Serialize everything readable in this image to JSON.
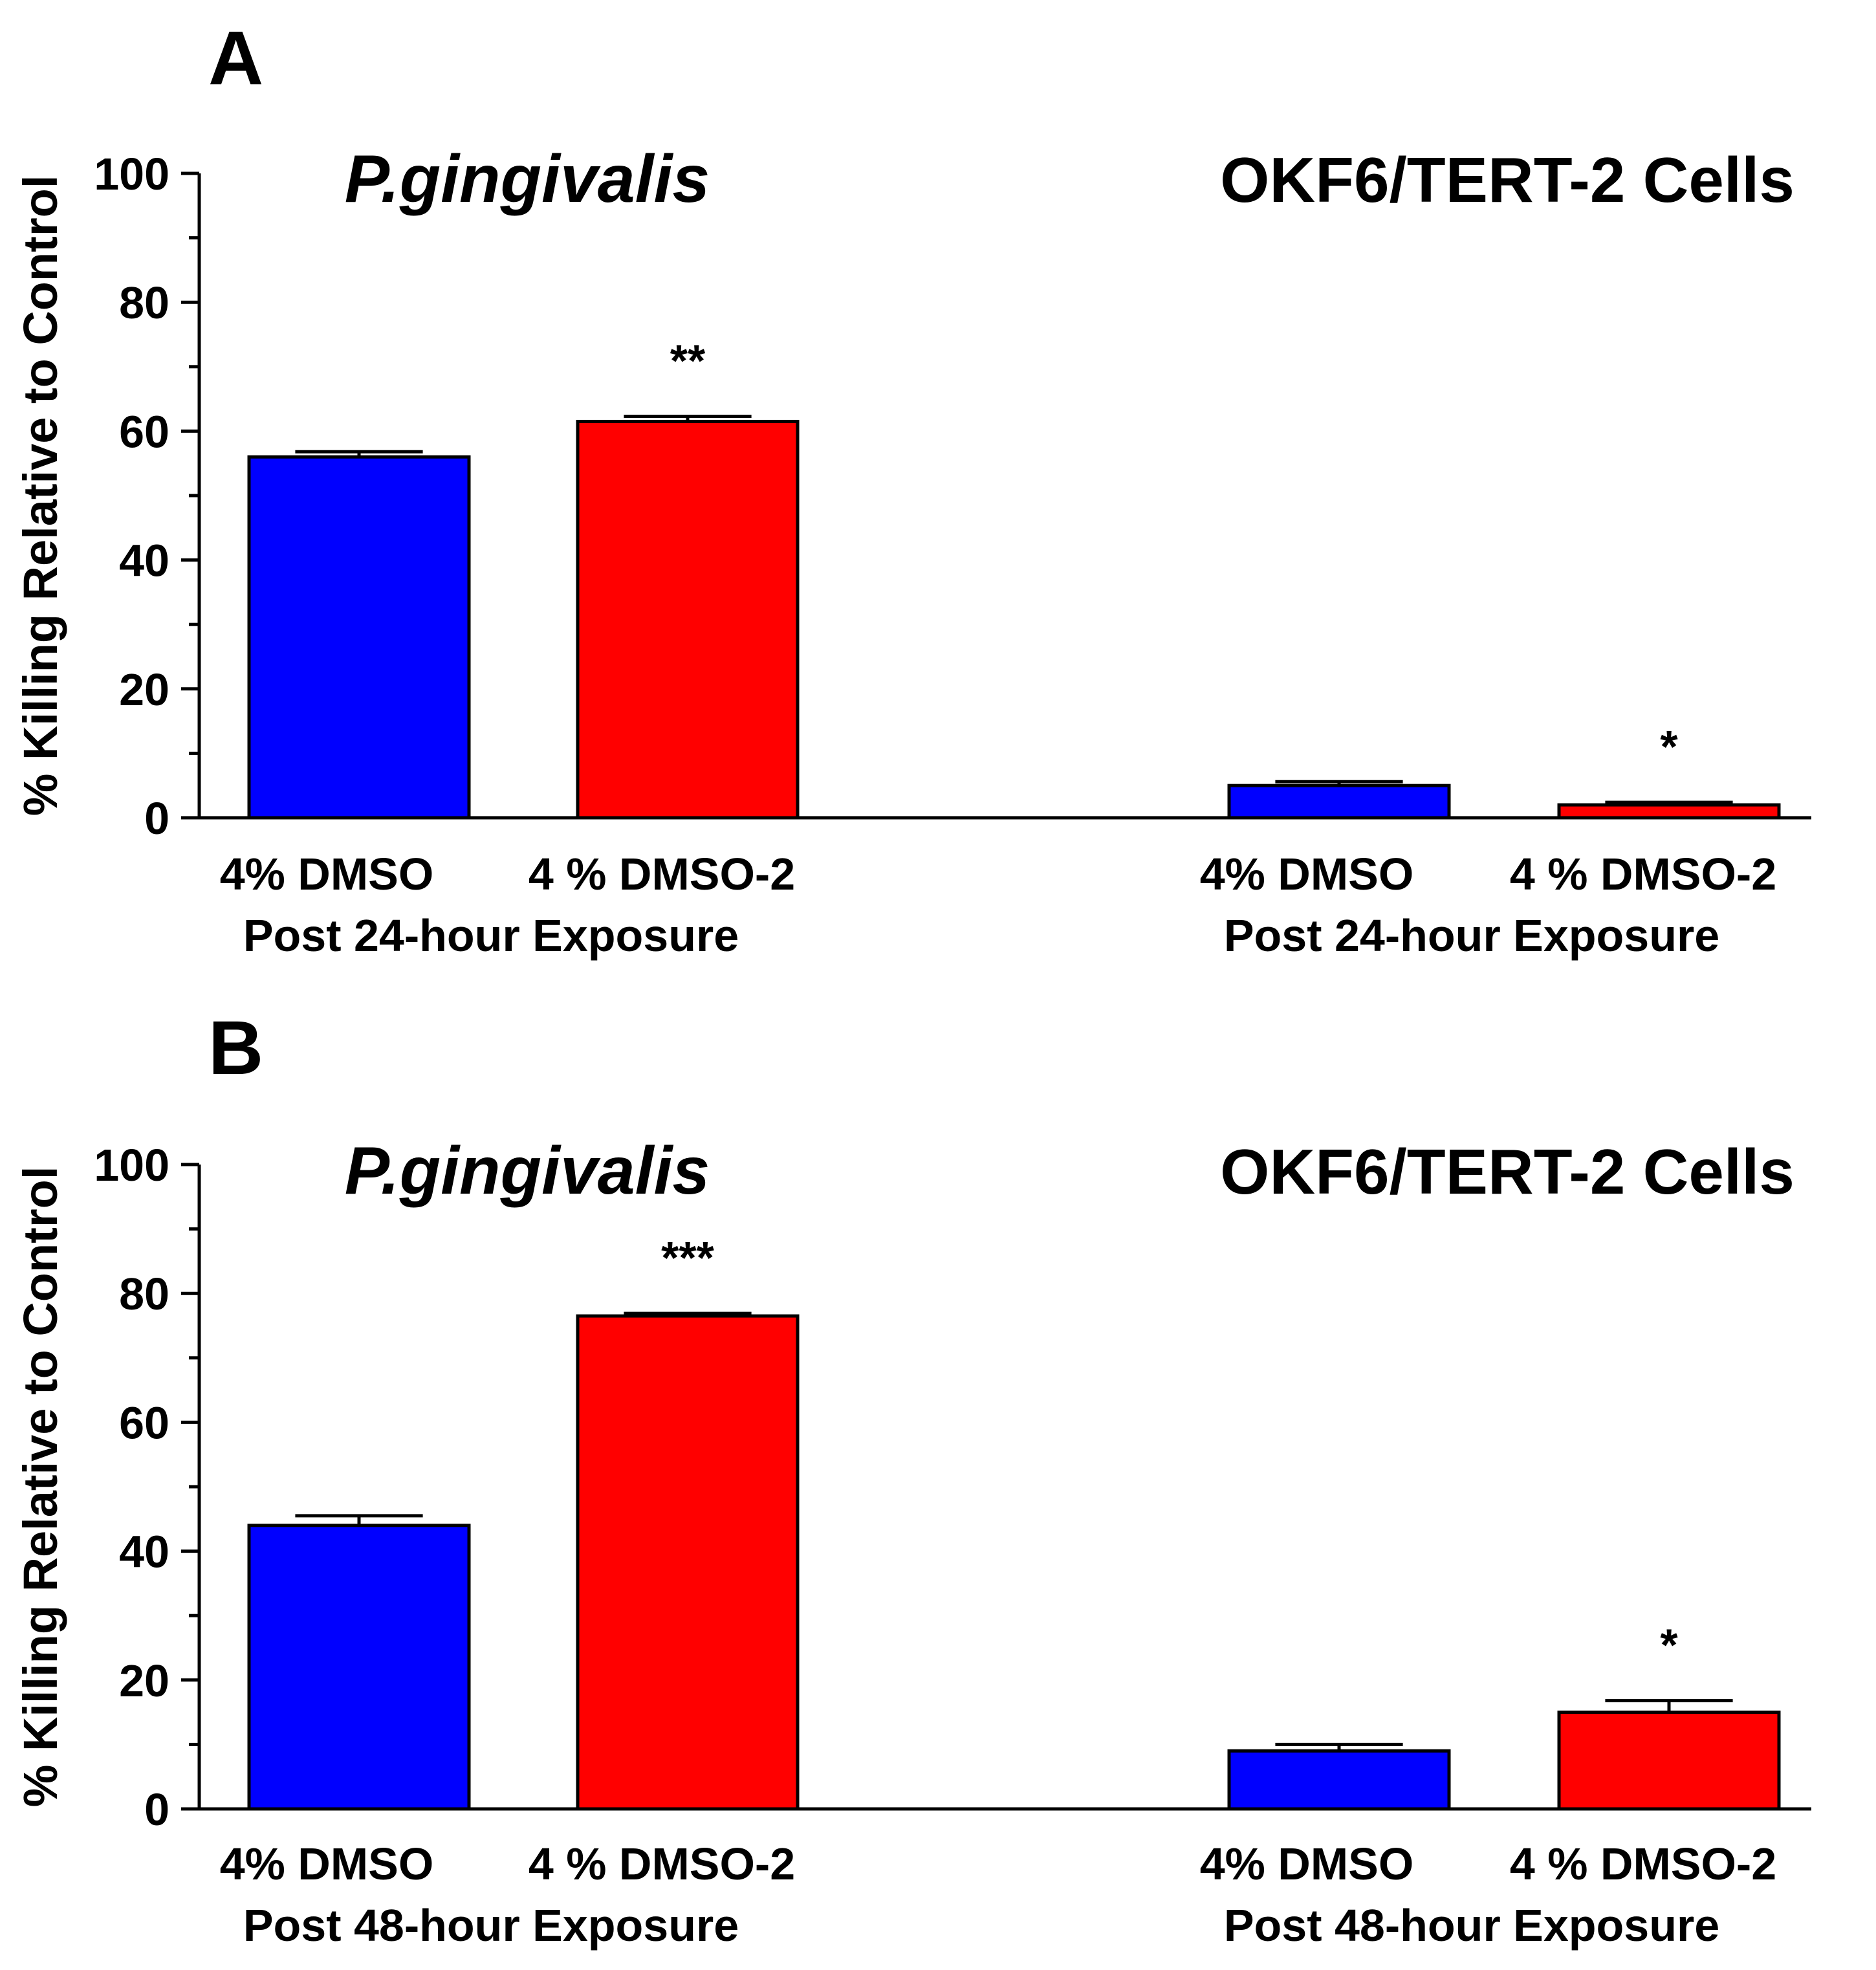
{
  "panels": [
    {
      "label": "A",
      "ylabel": "% Killing Relative to Control",
      "titles": [
        "P.gingivalis",
        "OKF6/TERT-2 Cells"
      ],
      "xsub": "Post 24-hour Exposure",
      "axis_ticks": [
        "0",
        "20",
        "40",
        "60",
        "80",
        "100"
      ]
    },
    {
      "label": "B",
      "ylabel": "% Killing Relative to Control",
      "titles": [
        "P.gingivalis",
        "OKF6/TERT-2 Cells"
      ],
      "xsub": "Post 48-hour Exposure",
      "axis_ticks": [
        "0",
        "20",
        "40",
        "60",
        "80",
        "100"
      ]
    }
  ],
  "colors": {
    "dmso": "#0000ff",
    "dmso2": "#ff0000"
  },
  "chart_data": [
    {
      "type": "bar",
      "title": "A",
      "ylabel": "% Killing Relative to Control",
      "ylim": [
        0,
        100
      ],
      "groups": [
        {
          "name": "P.gingivalis",
          "subtitle": "Post 24-hour Exposure",
          "categories": [
            "4% DMSO",
            "4 % DMSO-2"
          ],
          "values": [
            56,
            61.5
          ],
          "errors": [
            0.8,
            0.8
          ],
          "annotations": [
            "",
            "**"
          ]
        },
        {
          "name": "OKF6/TERT-2 Cells",
          "subtitle": "Post 24-hour Exposure",
          "categories": [
            "4% DMSO",
            "4 % DMSO-2"
          ],
          "values": [
            5,
            2
          ],
          "errors": [
            0.6,
            0.4
          ],
          "annotations": [
            "",
            "*"
          ]
        }
      ]
    },
    {
      "type": "bar",
      "title": "B",
      "ylabel": "% Killing Relative to Control",
      "ylim": [
        0,
        100
      ],
      "groups": [
        {
          "name": "P.gingivalis",
          "subtitle": "Post 48-hour Exposure",
          "categories": [
            "4% DMSO",
            "4 % DMSO-2"
          ],
          "values": [
            44,
            76.5
          ],
          "errors": [
            1.5,
            0.4
          ],
          "annotations": [
            "",
            "***"
          ]
        },
        {
          "name": "OKF6/TERT-2 Cells",
          "subtitle": "Post 48-hour Exposure",
          "categories": [
            "4% DMSO",
            "4 % DMSO-2"
          ],
          "values": [
            9,
            15
          ],
          "errors": [
            1,
            1.8
          ],
          "annotations": [
            "",
            "*"
          ]
        }
      ]
    }
  ]
}
